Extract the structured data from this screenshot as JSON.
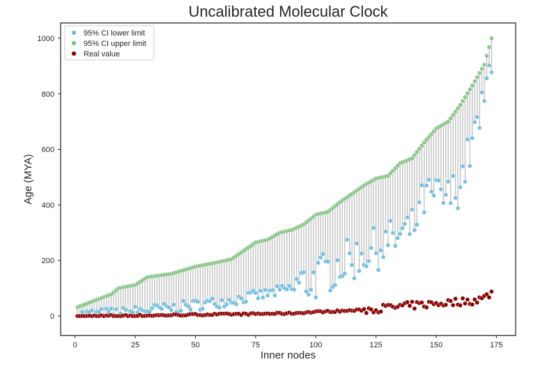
{
  "chart_data": {
    "type": "scatter",
    "title": "Uncalibrated Molecular Clock",
    "xlabel": "Inner nodes",
    "ylabel": "Age (MYA)",
    "xlim": [
      -6,
      183
    ],
    "ylim": [
      -70,
      1055
    ],
    "xticks": [
      0,
      25,
      50,
      75,
      100,
      125,
      150,
      175
    ],
    "yticks": [
      0,
      200,
      400,
      600,
      800,
      1000
    ],
    "grid": false,
    "legend_position": "top-left",
    "colors": {
      "lower": "#6bbbe0",
      "upper": "#7fbf7f",
      "real": "#8b0000",
      "interval": "#bdbdbd"
    },
    "n_points": 173,
    "upper_knots": [
      [
        1,
        32
      ],
      [
        5,
        45
      ],
      [
        10,
        62
      ],
      [
        15,
        78
      ],
      [
        18,
        100
      ],
      [
        25,
        112
      ],
      [
        30,
        140
      ],
      [
        40,
        152
      ],
      [
        50,
        178
      ],
      [
        60,
        195
      ],
      [
        65,
        205
      ],
      [
        70,
        235
      ],
      [
        75,
        265
      ],
      [
        80,
        275
      ],
      [
        85,
        300
      ],
      [
        90,
        310
      ],
      [
        95,
        330
      ],
      [
        100,
        365
      ],
      [
        105,
        375
      ],
      [
        110,
        410
      ],
      [
        115,
        440
      ],
      [
        120,
        470
      ],
      [
        125,
        495
      ],
      [
        130,
        505
      ],
      [
        135,
        550
      ],
      [
        140,
        568
      ],
      [
        145,
        625
      ],
      [
        150,
        675
      ],
      [
        155,
        700
      ],
      [
        160,
        760
      ],
      [
        165,
        830
      ],
      [
        170,
        905
      ],
      [
        173,
        1000
      ]
    ],
    "lower_knots": [
      [
        1,
        5
      ],
      [
        10,
        8
      ],
      [
        20,
        12
      ],
      [
        30,
        22
      ],
      [
        40,
        28
      ],
      [
        50,
        40
      ],
      [
        60,
        50
      ],
      [
        70,
        65
      ],
      [
        80,
        80
      ],
      [
        90,
        100
      ],
      [
        100,
        135
      ],
      [
        105,
        160
      ],
      [
        110,
        190
      ],
      [
        115,
        200
      ],
      [
        120,
        230
      ],
      [
        125,
        240
      ],
      [
        130,
        265
      ],
      [
        135,
        285
      ],
      [
        140,
        310
      ],
      [
        145,
        420
      ],
      [
        150,
        430
      ],
      [
        155,
        420
      ],
      [
        160,
        480
      ],
      [
        165,
        620
      ],
      [
        170,
        760
      ],
      [
        173,
        950
      ]
    ],
    "real_knots": [
      [
        1,
        0
      ],
      [
        30,
        2
      ],
      [
        50,
        5
      ],
      [
        70,
        7
      ],
      [
        90,
        10
      ],
      [
        100,
        15
      ],
      [
        110,
        18
      ],
      [
        120,
        22
      ],
      [
        130,
        30
      ],
      [
        140,
        38
      ],
      [
        150,
        45
      ],
      [
        160,
        52
      ],
      [
        165,
        55
      ],
      [
        170,
        65
      ],
      [
        173,
        85
      ]
    ],
    "series": [
      {
        "name": "95% CI lower limit",
        "color": "#6bbbe0"
      },
      {
        "name": "95% CI upper limit",
        "color": "#7fbf7f"
      },
      {
        "name": "Real value",
        "color": "#8b0000"
      }
    ]
  }
}
